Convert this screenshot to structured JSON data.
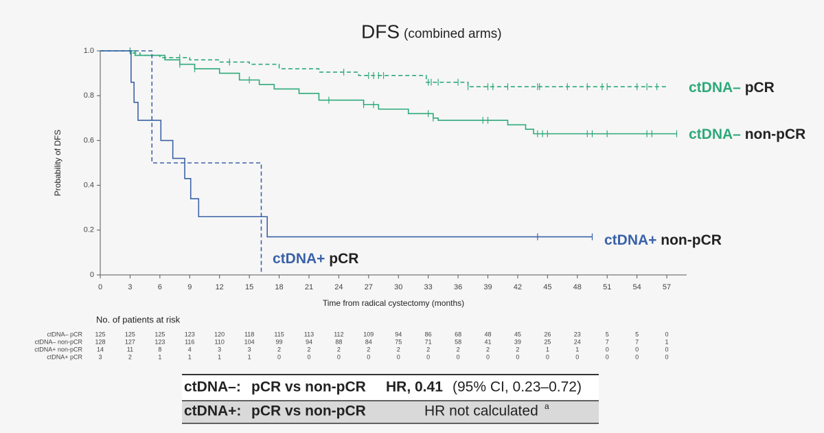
{
  "chart_data": {
    "type": "step",
    "title": "DFS",
    "subtitle": "(combined arms)",
    "x_label": "Time from radical cystectomy (months)",
    "y_label": "Probability of DFS",
    "xlim": [
      0,
      59
    ],
    "ylim": [
      0,
      1
    ],
    "xticks": [
      0,
      3,
      6,
      9,
      12,
      15,
      18,
      21,
      24,
      27,
      30,
      33,
      36,
      39,
      42,
      45,
      48,
      51,
      54,
      57
    ],
    "yticks": [
      0,
      0.2,
      0.4,
      0.6,
      0.8,
      {
        "value": 1,
        "label": "1.0"
      }
    ],
    "series": [
      {
        "name": "ctDNA– pCR",
        "color": "#2ea97a",
        "dashed": true,
        "x": [
          0,
          3.3,
          4,
          6,
          9,
          12,
          15,
          18,
          22,
          26,
          32.8,
          37,
          57
        ],
        "values": [
          1,
          0.99,
          0.98,
          0.97,
          0.96,
          0.95,
          0.94,
          0.92,
          0.905,
          0.89,
          0.86,
          0.84,
          0.84
        ],
        "censored": [
          3,
          8,
          13,
          24.5,
          27,
          27.5,
          28,
          28.5,
          33,
          33.3,
          34,
          36,
          37,
          39,
          39.5,
          41,
          44,
          44.2,
          47,
          49,
          50.5,
          51,
          54,
          55,
          56
        ]
      },
      {
        "name": "ctDNA– non-pCR",
        "color": "#2ea97a",
        "dashed": false,
        "x": [
          0,
          3.5,
          6.5,
          8,
          9.5,
          12,
          14,
          16,
          17.5,
          20,
          22,
          26.5,
          28,
          31,
          33.5,
          34,
          41,
          42.8,
          43.6,
          58
        ],
        "values": [
          1,
          0.98,
          0.96,
          0.94,
          0.92,
          0.9,
          0.87,
          0.85,
          0.83,
          0.81,
          0.78,
          0.76,
          0.74,
          0.72,
          0.7,
          0.69,
          0.67,
          0.65,
          0.63,
          0.63
        ],
        "censored": [
          8,
          9.5,
          15,
          23,
          26.5,
          27.5,
          33,
          33.5,
          38.5,
          39,
          44,
          44.5,
          45,
          49,
          49.5,
          51,
          55,
          55.5,
          58
        ]
      },
      {
        "name": "ctDNA+ non-pCR",
        "color": "#3a62a8",
        "dashed": false,
        "x": [
          0,
          3.1,
          3.4,
          3.8,
          6.1,
          7.3,
          8.5,
          9.1,
          9.9,
          16.8,
          49.5
        ],
        "values": [
          1,
          0.86,
          0.77,
          0.69,
          0.6,
          0.52,
          0.43,
          0.34,
          0.26,
          0.17,
          0.17
        ],
        "censored": [
          44,
          49.5
        ]
      },
      {
        "name": "ctDNA+ pCR",
        "color": "#3a62a8",
        "dashed": true,
        "x": [
          0,
          5.2,
          16.2
        ],
        "values": [
          1,
          0.5,
          0
        ]
      }
    ],
    "at_risk": {
      "title": "No. of patients at risk",
      "rows": [
        [
          125,
          125,
          125,
          123,
          120,
          118,
          115,
          113,
          112,
          109,
          94,
          86,
          68,
          48,
          45,
          26,
          23,
          5,
          5,
          0
        ],
        [
          128,
          127,
          123,
          116,
          110,
          104,
          99,
          94,
          88,
          84,
          75,
          71,
          58,
          41,
          39,
          25,
          24,
          7,
          7,
          1
        ],
        [
          14,
          11,
          8,
          4,
          3,
          3,
          2,
          2,
          2,
          2,
          2,
          2,
          2,
          2,
          2,
          1,
          1,
          0,
          0,
          0
        ],
        [
          3,
          2,
          1,
          1,
          1,
          1,
          0,
          0,
          0,
          0,
          0,
          0,
          0,
          0,
          0,
          0,
          0,
          0,
          0,
          0
        ]
      ]
    }
  },
  "summary": {
    "rows": [
      {
        "group": "ctDNA–:",
        "comparison": "pCR vs non-pCR",
        "hr": "HR, 0.41",
        "ci": "(95% CI, 0.23–0.72)"
      },
      {
        "group": "ctDNA+:",
        "comparison": "pCR vs non-pCR",
        "result": "HR not calculated",
        "footnote": "a"
      }
    ]
  }
}
